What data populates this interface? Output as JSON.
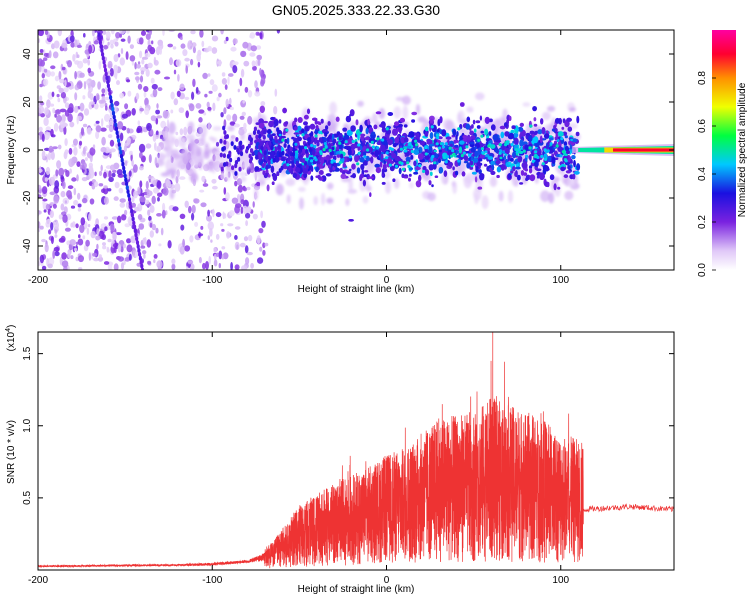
{
  "title": "GN05.2025.333.22.33.G30",
  "chart_data": [
    {
      "type": "heatmap",
      "xlabel": "Height of straight line (km)",
      "ylabel": "Frequency (Hz)",
      "xlim": [
        -200,
        165
      ],
      "ylim": [
        -50,
        50
      ],
      "xticks": [
        -200,
        -100,
        0,
        100
      ],
      "yticks": [
        -40,
        -20,
        0,
        20,
        40
      ],
      "colorbar": {
        "label": "Normalized spectral amplitude",
        "range": [
          0.0,
          1.0
        ],
        "ticks": [
          "0.0",
          "0.2",
          "0.4",
          "0.6",
          "0.8"
        ],
        "tick_values": [
          0.0,
          0.2,
          0.4,
          0.6,
          0.8
        ],
        "colormap": [
          "#ffffff",
          "#e0c8f8",
          "#7a22e0",
          "#1a10e0",
          "#00c8ff",
          "#00ff40",
          "#f0ff00",
          "#ff9000",
          "#ff0030",
          "#ff00a0"
        ]
      },
      "features": {
        "noise_region_x": [
          -200,
          -70
        ],
        "band_region_x": [
          -75,
          110
        ],
        "band_center_hz": 0,
        "band_halfwidth_hz": 12,
        "streak_start": [
          -165,
          48
        ],
        "streak_end": [
          -140,
          -50
        ],
        "tone_region_x": [
          110,
          165
        ],
        "tone_freq_hz": 0,
        "tone_peak_amplitude": 0.9
      }
    },
    {
      "type": "line",
      "xlabel": "Height of straight line (km)",
      "ylabel": "SNR (10 * v/v)",
      "y_multiplier": "(x10",
      "y_multiplier_exp": "4",
      "y_multiplier_close": ")",
      "xlim": [
        -200,
        165
      ],
      "ylim": [
        0,
        1.65
      ],
      "xticks": [
        -200,
        -100,
        0,
        100
      ],
      "yticks": [
        "0.5",
        "1.0",
        "1.5"
      ],
      "ytick_values": [
        0.5,
        1.0,
        1.5
      ],
      "series": [
        {
          "name": "SNR",
          "color": "#ee3333",
          "baseline": [
            [
              -200,
              0.02
            ],
            [
              -100,
              0.03
            ],
            [
              -70,
              0.06
            ],
            [
              -50,
              0.14
            ],
            [
              -25,
              0.2
            ],
            [
              0,
              0.28
            ],
            [
              25,
              0.33
            ],
            [
              50,
              0.36
            ],
            [
              75,
              0.36
            ],
            [
              100,
              0.32
            ],
            [
              112,
              0.28
            ]
          ],
          "envelope": [
            [
              -200,
              0.04
            ],
            [
              -120,
              0.05
            ],
            [
              -80,
              0.08
            ],
            [
              -65,
              0.2
            ],
            [
              -50,
              0.45
            ],
            [
              -30,
              0.6
            ],
            [
              -10,
              0.72
            ],
            [
              0,
              0.8
            ],
            [
              10,
              0.85
            ],
            [
              20,
              0.95
            ],
            [
              30,
              1.05
            ],
            [
              50,
              1.1
            ],
            [
              60,
              1.2
            ],
            [
              70,
              1.15
            ],
            [
              90,
              1.05
            ],
            [
              100,
              0.95
            ],
            [
              112,
              0.9
            ]
          ],
          "peaks": [
            [
              30,
              1.05
            ],
            [
              32,
              1.15
            ],
            [
              60,
              1.45
            ],
            [
              61,
              1.65
            ],
            [
              70,
              1.2
            ],
            [
              90,
              1.1
            ]
          ],
          "plateau": [
            [
              113,
              0.42
            ],
            [
              140,
              0.44
            ],
            [
              165,
              0.42
            ]
          ]
        }
      ]
    }
  ]
}
